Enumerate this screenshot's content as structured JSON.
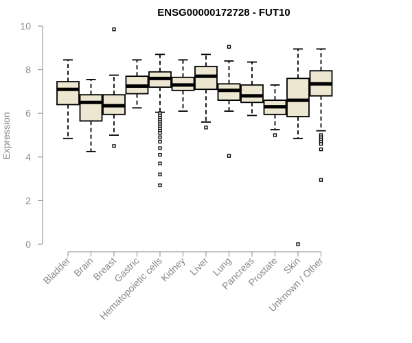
{
  "chart_data": {
    "type": "box",
    "title": "ENSG00000172728 - FUT10",
    "xlabel": "",
    "ylabel": "Expression",
    "ylim": [
      0,
      10
    ],
    "yticks": [
      0,
      2,
      4,
      6,
      8,
      10
    ],
    "box_fill": "#ede6d0",
    "categories": [
      "Bladder",
      "Brain",
      "Breast",
      "Gastric",
      "Hematopoietic cells",
      "Kidney",
      "Liver",
      "Lung",
      "Pancreas",
      "Prostate",
      "Skin",
      "Unknown / Other"
    ],
    "boxes": [
      {
        "whisker_low": 4.85,
        "q1": 6.4,
        "median": 7.1,
        "q3": 7.45,
        "whisker_high": 8.45,
        "outliers": []
      },
      {
        "whisker_low": 4.25,
        "q1": 5.65,
        "median": 6.5,
        "q3": 6.85,
        "whisker_high": 7.55,
        "outliers": []
      },
      {
        "whisker_low": 5.0,
        "q1": 5.95,
        "median": 6.35,
        "q3": 6.85,
        "whisker_high": 7.75,
        "outliers": [
          9.85,
          4.5
        ]
      },
      {
        "whisker_low": 6.25,
        "q1": 6.9,
        "median": 7.25,
        "q3": 7.7,
        "whisker_high": 8.45,
        "outliers": []
      },
      {
        "whisker_low": 6.05,
        "q1": 7.2,
        "median": 7.6,
        "q3": 7.9,
        "whisker_high": 8.7,
        "outliers": [
          6.0,
          5.9,
          5.8,
          5.7,
          5.6,
          5.5,
          5.4,
          5.3,
          5.2,
          5.1,
          4.9,
          4.7,
          4.4,
          4.1,
          3.7,
          3.2,
          2.7
        ]
      },
      {
        "whisker_low": 6.1,
        "q1": 7.05,
        "median": 7.3,
        "q3": 7.65,
        "whisker_high": 8.45,
        "outliers": []
      },
      {
        "whisker_low": 5.6,
        "q1": 7.1,
        "median": 7.7,
        "q3": 8.15,
        "whisker_high": 8.7,
        "outliers": [
          5.35
        ]
      },
      {
        "whisker_low": 6.1,
        "q1": 6.6,
        "median": 7.05,
        "q3": 7.35,
        "whisker_high": 8.4,
        "outliers": [
          9.05,
          4.05
        ]
      },
      {
        "whisker_low": 5.9,
        "q1": 6.5,
        "median": 6.8,
        "q3": 7.3,
        "whisker_high": 8.35,
        "outliers": []
      },
      {
        "whisker_low": 5.25,
        "q1": 5.95,
        "median": 6.3,
        "q3": 6.6,
        "whisker_high": 7.3,
        "outliers": [
          5.0
        ]
      },
      {
        "whisker_low": 4.85,
        "q1": 5.85,
        "median": 6.6,
        "q3": 7.6,
        "whisker_high": 8.95,
        "outliers": [
          0.0
        ]
      },
      {
        "whisker_low": 5.2,
        "q1": 6.8,
        "median": 7.35,
        "q3": 7.95,
        "whisker_high": 8.95,
        "outliers": [
          5.0,
          4.9,
          4.8,
          4.7,
          4.6,
          4.35,
          2.95
        ]
      }
    ]
  }
}
